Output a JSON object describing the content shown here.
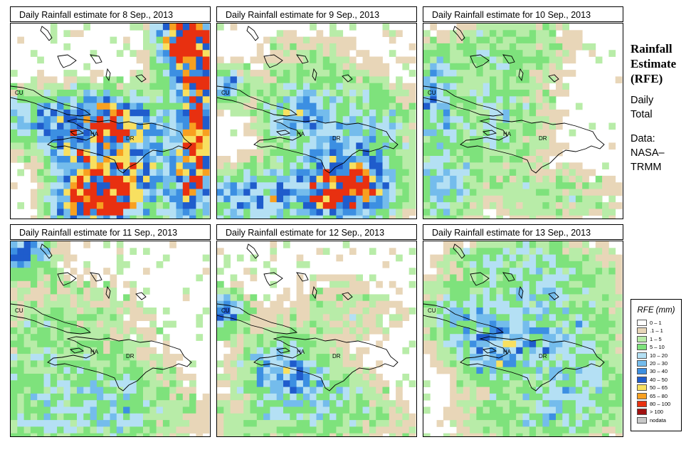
{
  "panels": [
    {
      "title": "Daily Rainfall estimate for  8 Sep., 2013",
      "date": "8 Sep., 2013"
    },
    {
      "title": "Daily Rainfall estimate for  9 Sep., 2013",
      "date": "9 Sep., 2013"
    },
    {
      "title": "Daily Rainfall estimate for  10 Sep., 2013",
      "date": "10 Sep., 2013"
    },
    {
      "title": "Daily Rainfall estimate for  11 Sep., 2013",
      "date": "11 Sep., 2013"
    },
    {
      "title": "Daily Rainfall estimate for  12 Sep., 2013",
      "date": "12 Sep., 2013"
    },
    {
      "title": "Daily Rainfall estimate for  13 Sep., 2013",
      "date": "13 Sep., 2013"
    }
  ],
  "map_labels": {
    "cuba": "CU",
    "haiti": "HA",
    "dominican_republic": "DR"
  },
  "side": {
    "title_line1": "Rainfall",
    "title_line2": "Estimate",
    "title_line3": "(RFE)",
    "line1": "Daily",
    "line2": "Total",
    "line3": "Data:",
    "line4": "NASA–",
    "line5": "TRMM"
  },
  "legend": {
    "title": "RFE (mm)",
    "items": [
      {
        "label": "0 – 1",
        "color": "#ffffff"
      },
      {
        "label": ".1 – 1",
        "color": "#e8d6b8"
      },
      {
        "label": "1 – 5",
        "color": "#b8eca8"
      },
      {
        "label": "5 – 10",
        "color": "#7ee27c"
      },
      {
        "label": "10 – 20",
        "color": "#b4e0f4"
      },
      {
        "label": "20 – 30",
        "color": "#74bcec"
      },
      {
        "label": "30 – 40",
        "color": "#3c8fe2"
      },
      {
        "label": "40 – 50",
        "color": "#1f5ccc"
      },
      {
        "label": "50 – 65",
        "color": "#f8e060"
      },
      {
        "label": "65 – 80",
        "color": "#f8a020"
      },
      {
        "label": "80 – 100",
        "color": "#e83010"
      },
      {
        "label": "> 100",
        "color": "#a01010"
      },
      {
        "label": "nodata",
        "color": "#c8c8c8"
      }
    ]
  }
}
